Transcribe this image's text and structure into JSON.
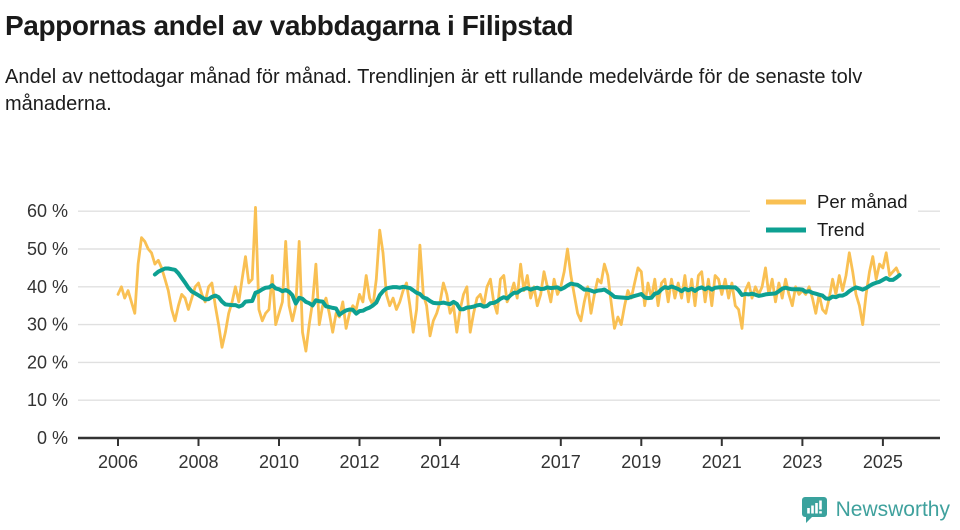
{
  "title": "Pappornas andel av vabbdagarna i Filipstad",
  "subtitle": "Andel av nettodagar månad för månad. Trendlinjen är ett rullande medelvärde för de senaste tolv månaderna.",
  "footer": {
    "brand": "Newsworthy",
    "logo_icon": "bar-chart-speech-bubble-icon"
  },
  "colors": {
    "monthly_line": "#f9c053",
    "trend_line": "#0da092",
    "grid": "#e0e0e0",
    "axis": "#333333",
    "label": "#333333",
    "legend_text": "#1a1a1a",
    "brand_teal": "#3fa19d"
  },
  "chart_data": {
    "type": "line",
    "title": "Pappornas andel av vabbdagarna i Filipstad",
    "x_start": "2006-01",
    "x_end": "2025-06",
    "x_unit": "month",
    "x_tick_labels": [
      2006,
      2008,
      2010,
      2012,
      2014,
      2017,
      2019,
      2021,
      2023,
      2025
    ],
    "y_tick_labels": [
      "0 %",
      "10 %",
      "20 %",
      "30 %",
      "40 %",
      "50 %",
      "60 %"
    ],
    "ylim": [
      0,
      60
    ],
    "grid": "horizontal",
    "legend_position": "top-right",
    "series": [
      {
        "name": "Per månad",
        "unit": "percent",
        "values": [
          38,
          40,
          37,
          39,
          36,
          33,
          46,
          53,
          52,
          50,
          49,
          46,
          47,
          45,
          42,
          39,
          34,
          31,
          35,
          38,
          37,
          34,
          37,
          40,
          41,
          38,
          36,
          40,
          41,
          35,
          30,
          24,
          28,
          33,
          36,
          40,
          36,
          42,
          48,
          41,
          42,
          61,
          34,
          31,
          33,
          34,
          43,
          30,
          33,
          36,
          52,
          35,
          31,
          35,
          52,
          28,
          23,
          30,
          36,
          46,
          30,
          35,
          37,
          33,
          28,
          33,
          32,
          36,
          29,
          33,
          35,
          34,
          38,
          36,
          43,
          37,
          35,
          42,
          55,
          49,
          38,
          35,
          37,
          34,
          36,
          39,
          41,
          35,
          28,
          34,
          51,
          38,
          35,
          27,
          31,
          33,
          36,
          41,
          38,
          33,
          35,
          28,
          34,
          38,
          40,
          28,
          33,
          37,
          38,
          35,
          40,
          42,
          36,
          33,
          42,
          43,
          36,
          38,
          41,
          37,
          46,
          39,
          43,
          37,
          40,
          35,
          38,
          44,
          40,
          36,
          42,
          38,
          40,
          44,
          50,
          43,
          38,
          33,
          31,
          36,
          40,
          33,
          38,
          42,
          41,
          46,
          43,
          36,
          29,
          32,
          30,
          35,
          39,
          37,
          41,
          45,
          44,
          35,
          41,
          37,
          42,
          35,
          41,
          42,
          36,
          42,
          37,
          41,
          37,
          43,
          36,
          42,
          35,
          43,
          44,
          36,
          42,
          35,
          43,
          42,
          38,
          42,
          37,
          41,
          35,
          34,
          29,
          39,
          41,
          37,
          40,
          38,
          40,
          45,
          38,
          42,
          36,
          41,
          37,
          42,
          38,
          35,
          40,
          38,
          39,
          38,
          40,
          37,
          33,
          38,
          34,
          33,
          37,
          42,
          38,
          43,
          39,
          43,
          49,
          44,
          38,
          35,
          30,
          38,
          44,
          48,
          42,
          46,
          45,
          49,
          43,
          44,
          45,
          43
        ]
      },
      {
        "name": "Trend",
        "unit": "percent",
        "derived": "rolling_mean_of_last_12_months_of_Per_månad"
      }
    ]
  }
}
